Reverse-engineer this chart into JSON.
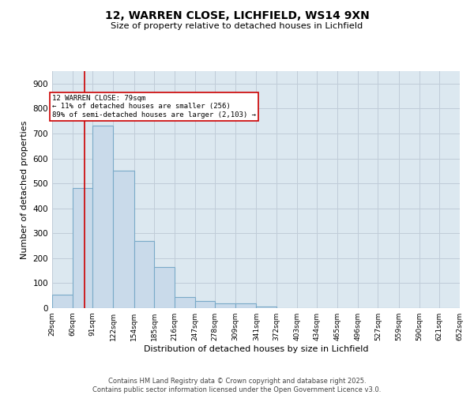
{
  "title_line1": "12, WARREN CLOSE, LICHFIELD, WS14 9XN",
  "title_line2": "Size of property relative to detached houses in Lichfield",
  "xlabel": "Distribution of detached houses by size in Lichfield",
  "ylabel": "Number of detached properties",
  "footer_line1": "Contains HM Land Registry data © Crown copyright and database right 2025.",
  "footer_line2": "Contains public sector information licensed under the Open Government Licence v3.0.",
  "bar_color": "#c9daea",
  "bar_edge_color": "#7aaac8",
  "grid_color": "#c0ccd8",
  "background_color": "#dce8f0",
  "property_line_color": "#cc0000",
  "property_sqm": 79,
  "annotation_text": "12 WARREN CLOSE: 79sqm\n← 11% of detached houses are smaller (256)\n89% of semi-detached houses are larger (2,103) →",
  "annotation_box_color": "#cc0000",
  "bins": [
    29,
    60,
    91,
    122,
    154,
    185,
    216,
    247,
    278,
    309,
    341,
    372,
    403,
    434,
    465,
    496,
    527,
    559,
    590,
    621,
    652
  ],
  "bin_labels": [
    "29sqm",
    "60sqm",
    "91sqm",
    "122sqm",
    "154sqm",
    "185sqm",
    "216sqm",
    "247sqm",
    "278sqm",
    "309sqm",
    "341sqm",
    "372sqm",
    "403sqm",
    "434sqm",
    "465sqm",
    "496sqm",
    "527sqm",
    "559sqm",
    "590sqm",
    "621sqm",
    "652sqm"
  ],
  "counts": [
    55,
    480,
    730,
    550,
    270,
    165,
    45,
    30,
    20,
    20,
    5,
    0,
    0,
    0,
    0,
    0,
    0,
    0,
    0,
    0
  ],
  "ylim": [
    0,
    950
  ],
  "yticks": [
    0,
    100,
    200,
    300,
    400,
    500,
    600,
    700,
    800,
    900
  ]
}
